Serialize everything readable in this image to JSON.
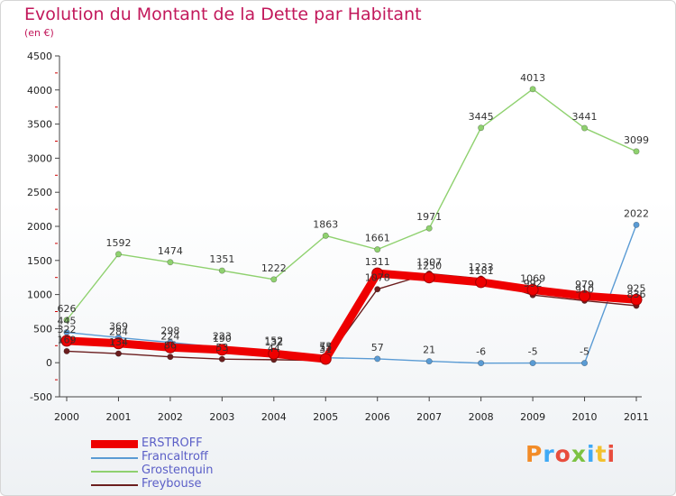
{
  "title": "Evolution du Montant de la Dette par Habitant",
  "unit_label": "(en €)",
  "logo": "Proxiti",
  "chart_data": {
    "type": "line",
    "title": "Evolution du Montant de la Dette par Habitant",
    "ylabel": "(en €)",
    "ylim": [
      -500,
      4500
    ],
    "y_ticks": [
      -500,
      0,
      500,
      1000,
      1500,
      2000,
      2500,
      3000,
      3500,
      4000,
      4500
    ],
    "x": [
      "2000",
      "2001",
      "2002",
      "2003",
      "2004",
      "2005",
      "2006",
      "2007",
      "2008",
      "2009",
      "2010",
      "2011"
    ],
    "grid": false,
    "legend_position": "bottom-left",
    "series": [
      {
        "name": "Grostenquin",
        "color": "#8fd16f",
        "values": [
          626,
          1592,
          1474,
          1351,
          1222,
          1863,
          1661,
          1971,
          3445,
          4013,
          3441,
          3099
        ]
      },
      {
        "name": "Francaltroff",
        "color": "#5a9bd4",
        "values": [
          445,
          369,
          298,
          223,
          152,
          73,
          57,
          21,
          -6,
          -5,
          -5,
          2022
        ]
      },
      {
        "name": "Freybouse",
        "color": "#6b1e1e",
        "values": [
          169,
          134,
          86,
          53,
          44,
          31,
          1078,
          1307,
          1233,
          992,
          910,
          836
        ]
      },
      {
        "name": "ERSTROFF",
        "color": "#ee0000",
        "values": [
          322,
          284,
          224,
          190,
          132,
          55,
          1311,
          1250,
          1181,
          1069,
          979,
          925
        ]
      }
    ]
  }
}
